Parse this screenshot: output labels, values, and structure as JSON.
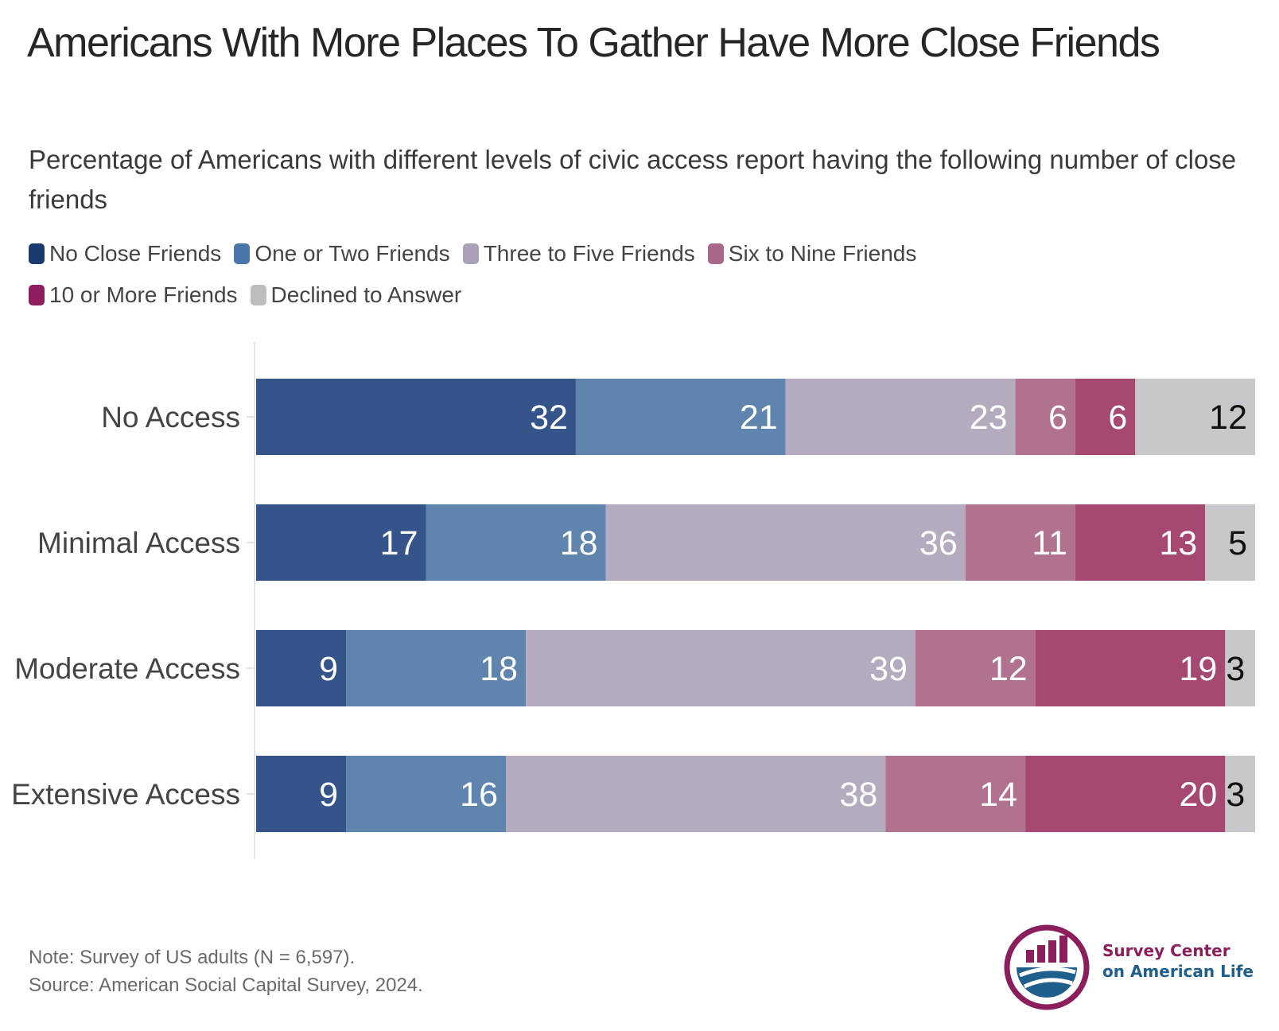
{
  "chart_data": {
    "type": "bar",
    "orientation": "horizontal",
    "stacked": true,
    "title": "Americans With More Places To Gather Have More Close Friends",
    "subtitle": "Percentage of Americans with different levels of civic access report having the following number of close friends",
    "categories": [
      "No Access",
      "Minimal Access",
      "Moderate Access",
      "Extensive Access"
    ],
    "series": [
      {
        "name": "No Close Friends",
        "color": "#34548a",
        "legend_color": "#1a3a6e",
        "label_color": "#ffffff",
        "values": [
          32,
          17,
          9,
          9
        ]
      },
      {
        "name": "One or Two Friends",
        "color": "#5f84ae",
        "legend_color": "#4a77a8",
        "label_color": "#ffffff",
        "values": [
          21,
          18,
          18,
          16
        ]
      },
      {
        "name": "Three to Five Friends",
        "color": "#b4abbe",
        "legend_color": "#aaa1b8",
        "label_color": "#ffffff",
        "values": [
          23,
          36,
          39,
          38
        ]
      },
      {
        "name": "Six to Nine Friends",
        "color": "#b0728f",
        "legend_color": "#a7668a",
        "label_color": "#ffffff",
        "values": [
          6,
          11,
          12,
          14
        ]
      },
      {
        "name": "10 or More Friends",
        "color": "#a54872",
        "legend_color": "#8e1e5e",
        "label_color": "#ffffff",
        "values": [
          6,
          13,
          19,
          20
        ]
      },
      {
        "name": "Declined to Answer",
        "color": "#c8c8ca",
        "legend_color": "#bdbdbd",
        "label_color": "#111111",
        "values": [
          12,
          5,
          3,
          3
        ]
      }
    ],
    "legend_position": "top-left",
    "grid": false
  },
  "footnote": {
    "note": "Note: Survey of US adults (N = 6,597).",
    "source": "Source: American Social Capital Survey, 2024."
  },
  "logo": {
    "line1": "Survey Center",
    "line2": "on American Life",
    "colors": {
      "magenta": "#8b1e5c",
      "blue": "#1f5f8b"
    }
  }
}
